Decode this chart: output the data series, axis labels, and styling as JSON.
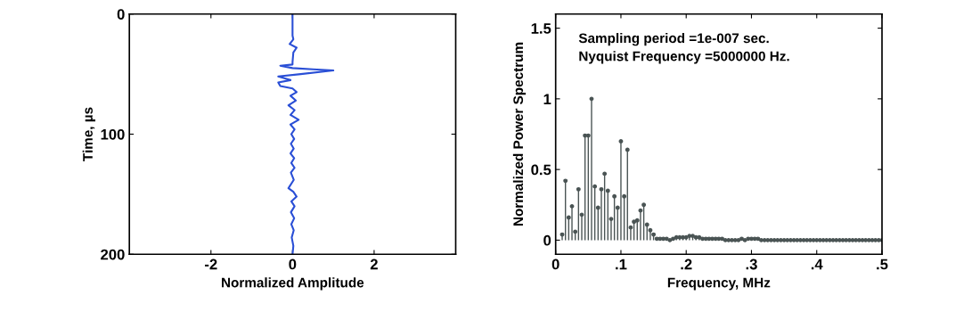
{
  "chart_data": [
    {
      "type": "line",
      "xlabel": "Normalized Amplitude",
      "ylabel": "Time, µs",
      "xlim": [
        -4,
        4
      ],
      "xticks": [
        -2,
        0,
        2
      ],
      "ylim": [
        200,
        0
      ],
      "yticks": [
        0,
        100,
        200
      ],
      "grid": false,
      "marker": "none",
      "line_style": "solid",
      "series": [
        {
          "color": "#2a4fd6",
          "x": [
            0,
            0,
            0.02,
            -0.07,
            0.1,
            0.02,
            0,
            0,
            -0.3,
            0,
            0.5,
            1.0,
            0.2,
            -0.35,
            -0.05,
            -0.35,
            -0.3,
            0,
            0.1,
            -0.05,
            0.08,
            -0.1,
            0.05,
            -0.05,
            0.15,
            -0.05,
            0.05,
            -0.03,
            0.04,
            -0.04,
            0.03,
            -0.05,
            0.04,
            -0.03,
            0.05,
            -0.04,
            0.03,
            -0.1,
            0.02,
            0.1,
            -0.03,
            0.05,
            -0.04,
            0.04,
            -0.03,
            0.03,
            -0.02,
            0.02,
            0
          ],
          "values": [
            0,
            18,
            21,
            25,
            28,
            32,
            40,
            42,
            43,
            45,
            46,
            47,
            50,
            52,
            55,
            57,
            60,
            62,
            65,
            68,
            72,
            76,
            80,
            84,
            88,
            92,
            96,
            100,
            104,
            108,
            112,
            116,
            120,
            124,
            128,
            132,
            138,
            145,
            148,
            152,
            156,
            160,
            165,
            170,
            175,
            180,
            186,
            193,
            200
          ]
        }
      ]
    },
    {
      "type": "lollipop",
      "xlabel": "Frequency, MHz",
      "ylabel": "Normalized Power Spectrum",
      "xlim": [
        0,
        0.5
      ],
      "xticks": [
        0,
        {
          "value": 0.1,
          "label": ".1"
        },
        {
          "value": 0.2,
          "label": ".2"
        },
        {
          "value": 0.3,
          "label": ".3"
        },
        {
          "value": 0.4,
          "label": ".4"
        },
        {
          "value": 0.5,
          "label": ".5"
        }
      ],
      "ylim": [
        -0.1,
        1.6
      ],
      "yticks": [
        0,
        0.5,
        1,
        1.5
      ],
      "grid": false,
      "marker": "circle",
      "annotations": [
        "Sampling period =1e-007 sec.",
        "Nyquist Frequency =5000000 Hz."
      ],
      "series": [
        {
          "color": "#4a5454",
          "x": [
            0.01,
            0.015,
            0.02,
            0.025,
            0.03,
            0.035,
            0.04,
            0.045,
            0.05,
            0.055,
            0.06,
            0.065,
            0.07,
            0.075,
            0.08,
            0.085,
            0.09,
            0.095,
            0.1,
            0.105,
            0.11,
            0.115,
            0.12,
            0.125,
            0.13,
            0.135,
            0.14,
            0.145,
            0.15,
            0.155,
            0.16,
            0.165,
            0.17,
            0.175,
            0.18,
            0.185,
            0.19,
            0.195,
            0.2,
            0.205,
            0.21,
            0.215,
            0.22,
            0.225,
            0.23,
            0.235,
            0.24,
            0.245,
            0.25,
            0.255,
            0.26,
            0.265,
            0.27,
            0.275,
            0.28,
            0.285,
            0.29,
            0.295,
            0.3,
            0.305,
            0.31,
            0.315,
            0.32,
            0.325,
            0.33,
            0.335,
            0.34,
            0.345,
            0.35,
            0.355,
            0.36,
            0.365,
            0.37,
            0.375,
            0.38,
            0.385,
            0.39,
            0.395,
            0.4,
            0.405,
            0.41,
            0.415,
            0.42,
            0.425,
            0.43,
            0.435,
            0.44,
            0.445,
            0.45,
            0.455,
            0.46,
            0.465,
            0.47,
            0.475,
            0.48,
            0.485,
            0.49,
            0.495,
            0.5
          ],
          "values": [
            0.04,
            0.42,
            0.16,
            0.24,
            0.06,
            0.36,
            0.18,
            0.74,
            0.74,
            1.0,
            0.38,
            0.23,
            0.36,
            0.47,
            0.35,
            0.15,
            0.31,
            0.23,
            0.7,
            0.31,
            0.64,
            0.09,
            0.13,
            0.14,
            0.21,
            0.25,
            0.11,
            0.07,
            0.04,
            0.01,
            0.01,
            0.01,
            0.01,
            0.0,
            0.01,
            0.02,
            0.02,
            0.02,
            0.02,
            0.03,
            0.03,
            0.02,
            0.02,
            0.01,
            0.01,
            0.01,
            0.01,
            0.01,
            0.01,
            0.01,
            0.0,
            0.0,
            0.0,
            0.0,
            0.0,
            0.01,
            0.0,
            0.01,
            0.01,
            0.01,
            0.01,
            0.0,
            0.0,
            0.0,
            0.0,
            0.0,
            0.0,
            0.0,
            0.0,
            0.0,
            0.0,
            0.0,
            0.0,
            0.0,
            0.0,
            0.0,
            0.0,
            0.0,
            0.0,
            0.0,
            0.0,
            0.0,
            0.0,
            0.0,
            0.0,
            0.0,
            0.0,
            0.0,
            0.0,
            0.0,
            0.0,
            0.0,
            0.0,
            0.0,
            0.0,
            0.0,
            0.0,
            0.0,
            0.0
          ]
        }
      ]
    }
  ]
}
